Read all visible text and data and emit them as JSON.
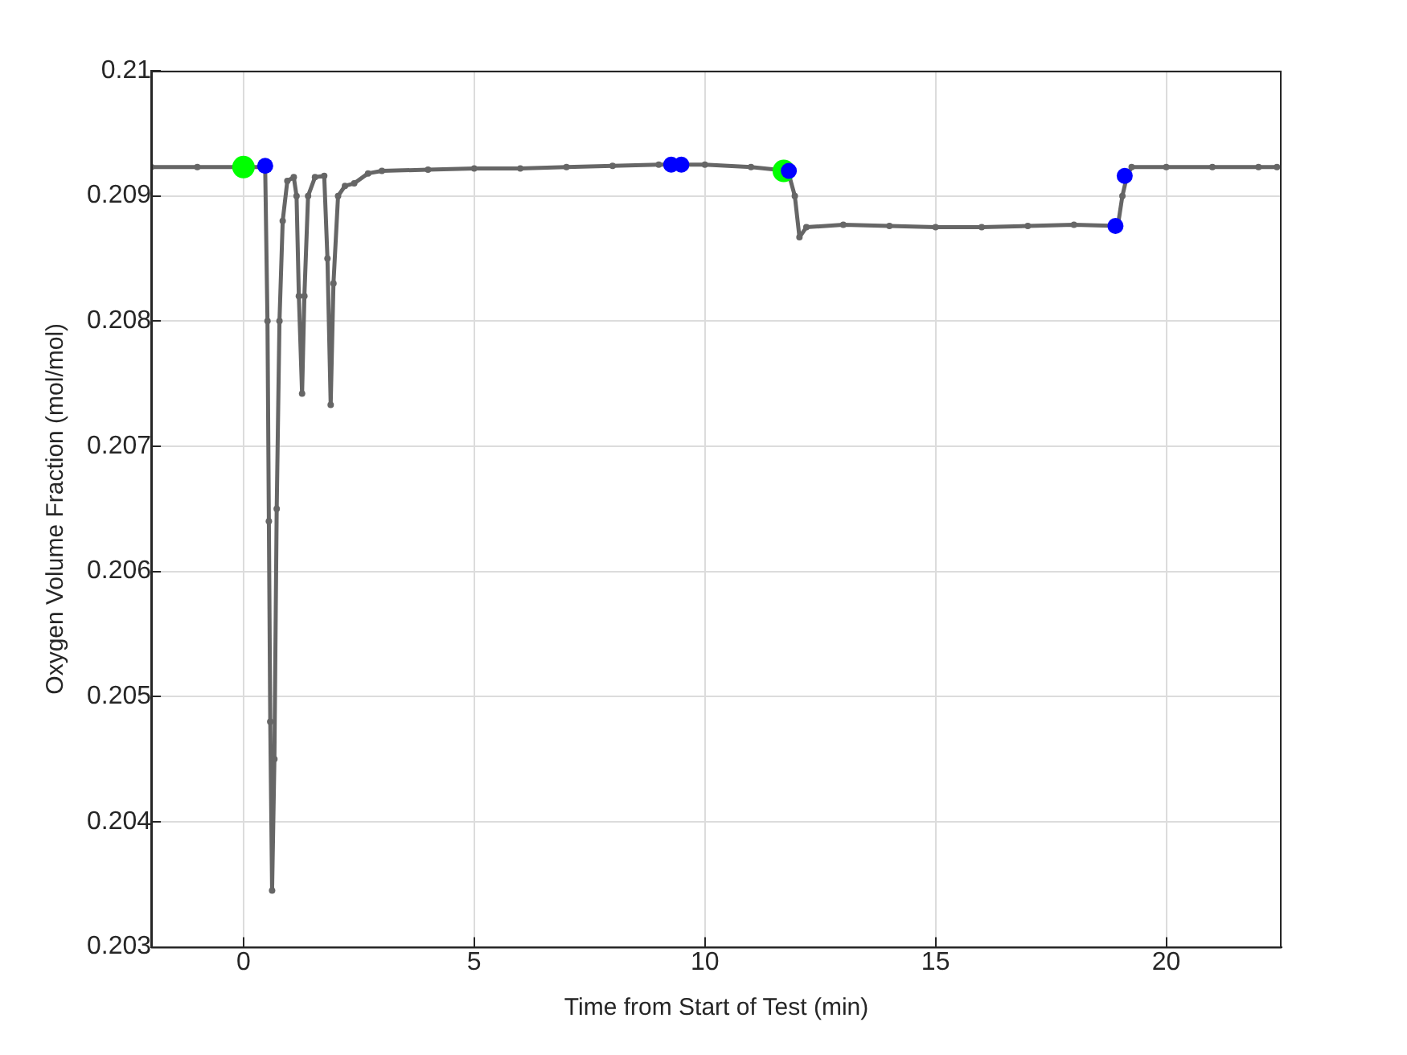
{
  "chart_data": {
    "type": "line",
    "xlabel": "Time from Start of Test (min)",
    "ylabel": "Oxygen Volume Fraction (mol/mol)",
    "xlim": [
      -2,
      22.5
    ],
    "xticks": [
      0,
      5,
      10,
      15,
      20
    ],
    "ylim": [
      0.203,
      0.21
    ],
    "yticks": [
      0.203,
      0.204,
      0.205,
      0.206,
      0.207,
      0.208,
      0.209,
      0.21
    ],
    "grid": true,
    "marker": "circle",
    "line_style": "solid",
    "series": [
      {
        "type": "line",
        "color": "#666666",
        "x": [
          -2,
          -1,
          0.47,
          0.52,
          0.55,
          0.58,
          0.62,
          0.67,
          0.72,
          0.78,
          0.85,
          0.95,
          1.09,
          1.15,
          1.2,
          1.27,
          1.32,
          1.4,
          1.55,
          1.75,
          1.82,
          1.89,
          1.95,
          2.05,
          2.2,
          2.4,
          2.7,
          3,
          4,
          5,
          6,
          7,
          8,
          9,
          10,
          11,
          11.8,
          11.95,
          12.05,
          12.2,
          13,
          14,
          15,
          16,
          17,
          18,
          18.95,
          19.05,
          19.15,
          19.25,
          20,
          21,
          22,
          22.4
        ],
        "values": [
          0.20923,
          0.20923,
          0.20923,
          0.208,
          0.2064,
          0.2048,
          0.20345,
          0.2045,
          0.2065,
          0.208,
          0.2088,
          0.20912,
          0.20915,
          0.209,
          0.2082,
          0.20742,
          0.2082,
          0.209,
          0.20915,
          0.20916,
          0.2085,
          0.20733,
          0.2083,
          0.209,
          0.20908,
          0.2091,
          0.20918,
          0.2092,
          0.20921,
          0.20922,
          0.20922,
          0.20923,
          0.20924,
          0.20925,
          0.20925,
          0.20923,
          0.2092,
          0.209,
          0.20867,
          0.20875,
          0.20877,
          0.20876,
          0.20875,
          0.20875,
          0.20876,
          0.20877,
          0.20876,
          0.209,
          0.20916,
          0.20923,
          0.20923,
          0.20923,
          0.20923,
          0.20923
        ]
      },
      {
        "type": "scatter",
        "color": "#00ff00",
        "x": [
          0,
          11.71
        ],
        "values": [
          0.20923,
          0.2092
        ]
      },
      {
        "type": "scatter",
        "color": "#0000ff",
        "x": [
          0.47,
          9.27,
          9.49,
          11.82,
          18.9,
          19.1
        ],
        "values": [
          0.20924,
          0.20925,
          0.20925,
          0.2092,
          0.20876,
          0.20916
        ]
      }
    ]
  }
}
